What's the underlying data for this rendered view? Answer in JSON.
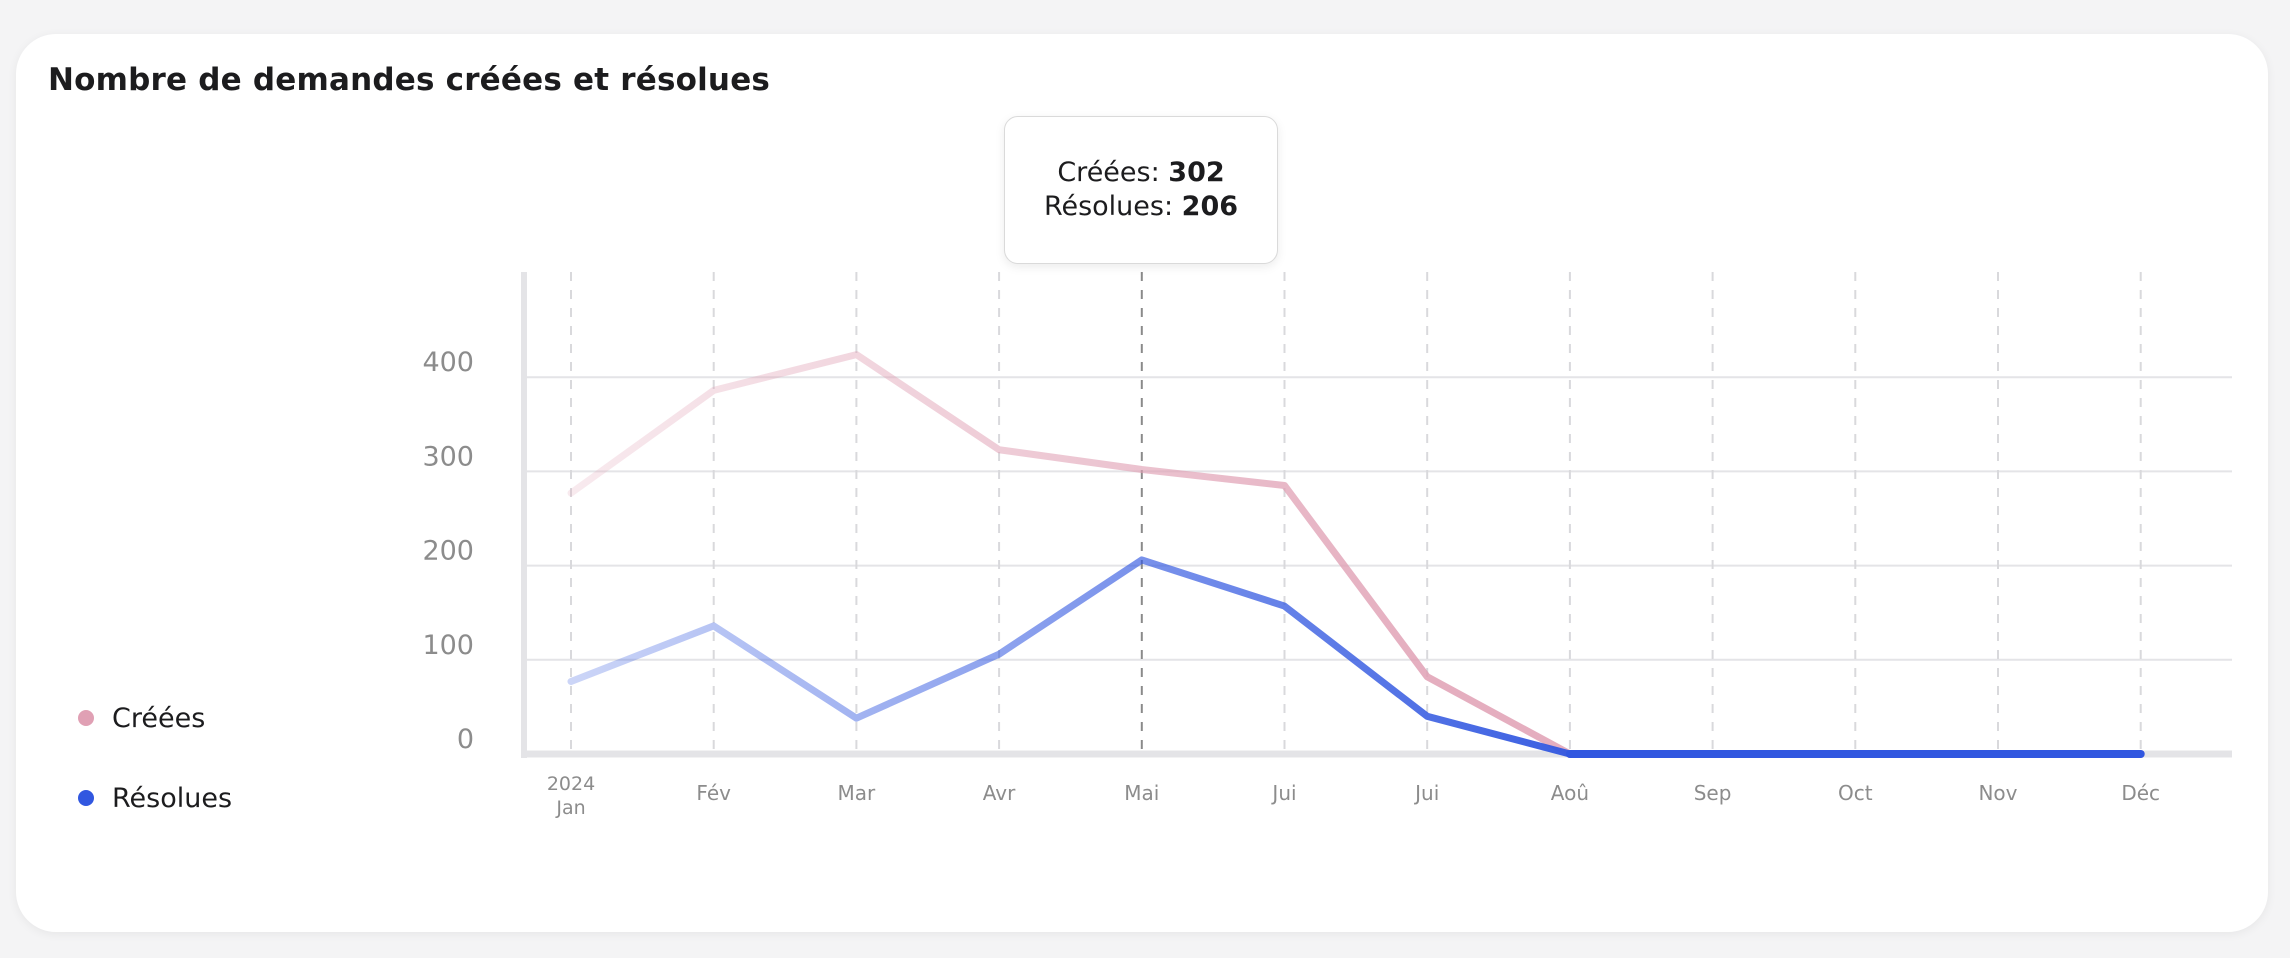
{
  "title": "Nombre de demandes créées et résolues",
  "tooltip": {
    "created_label": "Créées:",
    "created_value": "302",
    "resolved_label": "Résolues:",
    "resolved_value": "206"
  },
  "legend": [
    {
      "label": "Créées",
      "color": "#e0a0b4"
    },
    {
      "label": "Résolues",
      "color": "#3157e0"
    }
  ],
  "chart_data": {
    "type": "line",
    "year_label": "2024",
    "categories": [
      "Jan",
      "Fév",
      "Mar",
      "Avr",
      "Mai",
      "Jui",
      "Jui",
      "Aoû",
      "Sep",
      "Oct",
      "Nov",
      "Déc"
    ],
    "yticks": [
      "0",
      "100",
      "200",
      "300",
      "400"
    ],
    "ylim": [
      0,
      500
    ],
    "highlight_index": 4,
    "series": [
      {
        "name": "Créées",
        "color": "#e0a0b4",
        "values": [
          277,
          386,
          424,
          323,
          302,
          285,
          82,
          0,
          0,
          0,
          0,
          0
        ]
      },
      {
        "name": "Résolues",
        "color": "#3157e0",
        "values": [
          77,
          136,
          38,
          106,
          206,
          157,
          40,
          0,
          0,
          0,
          0,
          0
        ]
      }
    ],
    "grid": true
  }
}
